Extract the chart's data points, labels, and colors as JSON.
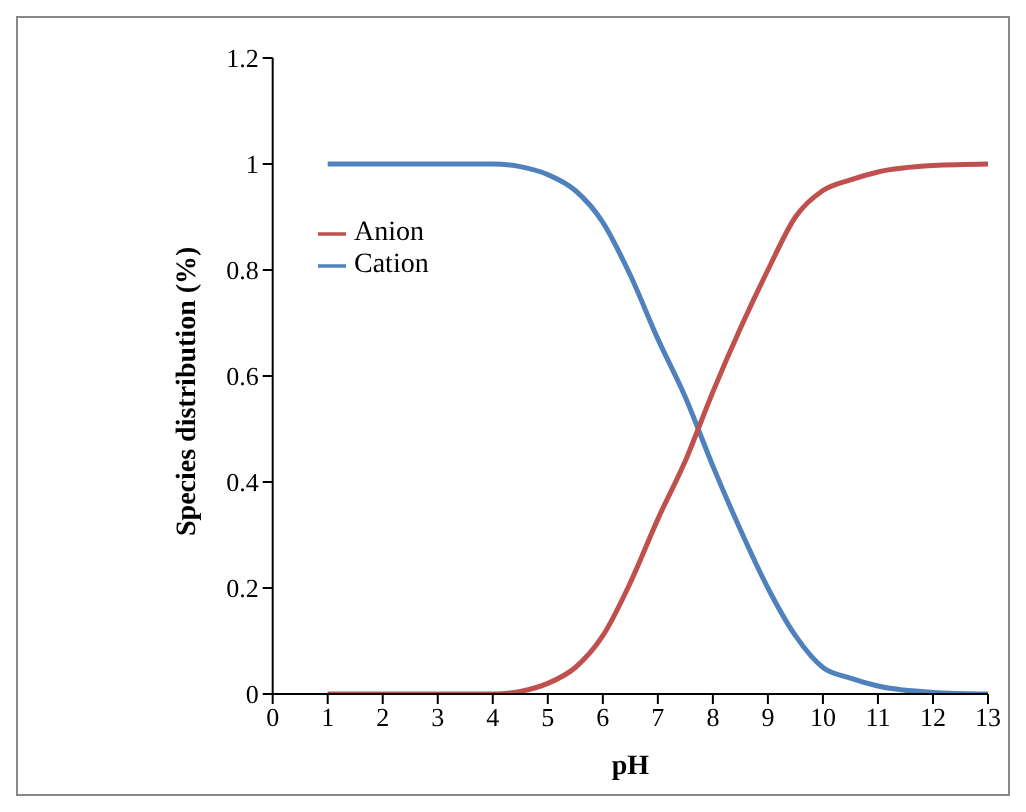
{
  "chart_data": {
    "type": "line",
    "xlabel": "pH",
    "ylabel": "Species distribution  (%)",
    "x": [
      1,
      2,
      3,
      4,
      4.5,
      5,
      5.5,
      6,
      6.5,
      7,
      7.5,
      8,
      8.5,
      9,
      9.5,
      10,
      10.5,
      11,
      12,
      13
    ],
    "series": [
      {
        "name": "Cation",
        "color": "#4f81bd",
        "values": [
          1,
          1,
          1,
          1,
          0.995,
          0.98,
          0.95,
          0.89,
          0.79,
          0.67,
          0.56,
          0.43,
          0.31,
          0.2,
          0.11,
          0.05,
          0.03,
          0.015,
          0.003,
          0
        ]
      },
      {
        "name": "Anion",
        "color": "#c0504d",
        "values": [
          0,
          0,
          0,
          0,
          0.005,
          0.02,
          0.05,
          0.11,
          0.21,
          0.33,
          0.44,
          0.57,
          0.69,
          0.8,
          0.9,
          0.95,
          0.97,
          0.985,
          0.997,
          1
        ]
      }
    ],
    "xlim": [
      0,
      13
    ],
    "xticks": [
      0,
      1,
      2,
      3,
      4,
      5,
      6,
      7,
      8,
      9,
      10,
      11,
      12,
      13
    ],
    "ylim": [
      0,
      1.2
    ],
    "yticks": [
      0,
      0.2,
      0.4,
      0.6,
      0.8,
      1,
      1.2
    ],
    "grid": false,
    "legend": "top left",
    "marker": "none",
    "line_style": "solid"
  }
}
